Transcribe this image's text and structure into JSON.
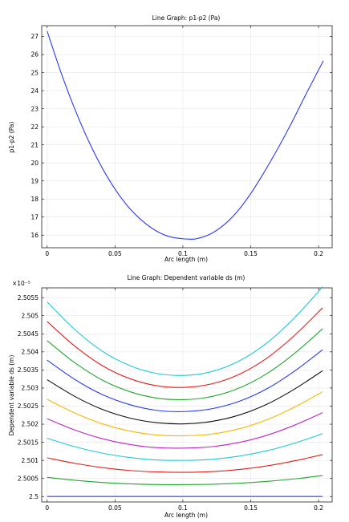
{
  "chart_data": [
    {
      "type": "line",
      "title": "Line Graph: p1-p2 (Pa)",
      "xlabel": "Arc length (m)",
      "ylabel": "p1-p2 (Pa)",
      "xlim": [
        -0.004,
        0.21
      ],
      "ylim": [
        15.3,
        27.6
      ],
      "x_ticks": [
        "0",
        "0.05",
        "0.1",
        "0.15",
        "0.2"
      ],
      "x_tick_values": [
        0,
        0.05,
        0.1,
        0.15,
        0.2
      ],
      "y_ticks": [
        "16",
        "17",
        "18",
        "19",
        "20",
        "21",
        "22",
        "23",
        "24",
        "25",
        "26",
        "27"
      ],
      "y_tick_values": [
        16,
        17,
        18,
        19,
        20,
        21,
        22,
        23,
        24,
        25,
        26,
        27
      ],
      "grid": true,
      "series": [
        {
          "color": "#2b3cf0",
          "x": [
            0,
            0.01,
            0.02,
            0.03,
            0.04,
            0.05,
            0.06,
            0.07,
            0.08,
            0.09,
            0.1,
            0.105,
            0.11,
            0.12,
            0.13,
            0.14,
            0.15,
            0.16,
            0.17,
            0.18,
            0.19,
            0.2,
            0.2035
          ],
          "y": [
            27.3,
            25.05,
            23.05,
            21.3,
            19.8,
            18.55,
            17.55,
            16.8,
            16.25,
            15.92,
            15.8,
            15.78,
            15.8,
            16.05,
            16.55,
            17.3,
            18.3,
            19.5,
            20.8,
            22.2,
            23.7,
            25.15,
            25.65
          ]
        }
      ]
    },
    {
      "type": "line",
      "title": "Line Graph: Dependent variable ds (m)",
      "xlabel": "Arc length (m)",
      "ylabel": "Dependent variable ds (m)",
      "exponent_label": "×10⁻⁵",
      "xlim": [
        -0.004,
        0.21
      ],
      "ylim": [
        2.49985,
        2.50577
      ],
      "x_ticks": [
        "0",
        "0.05",
        "0.1",
        "0.15",
        "0.2"
      ],
      "x_tick_values": [
        0,
        0.05,
        0.1,
        0.15,
        0.2
      ],
      "y_ticks": [
        "2.5",
        "2.5005",
        "2.501",
        "2.5015",
        "2.502",
        "2.5025",
        "2.503",
        "2.5035",
        "2.504",
        "2.5045",
        "2.505",
        "2.5055"
      ],
      "y_tick_values": [
        2.5,
        2.5005,
        2.501,
        2.5015,
        2.502,
        2.5025,
        2.503,
        2.5035,
        2.504,
        2.5045,
        2.505,
        2.5055
      ],
      "grid": true,
      "x": [
        0,
        0.0203,
        0.0406,
        0.0609,
        0.0812,
        0.1015,
        0.1218,
        0.1421,
        0.1624,
        0.1827,
        0.203
      ],
      "series": [
        {
          "color": "#2b3cf0",
          "y": [
            2.5,
            2.5,
            2.5,
            2.5,
            2.5,
            2.5,
            2.5,
            2.5,
            2.5,
            2.5,
            2.5
          ]
        },
        {
          "color": "#21a62d",
          "y": [
            2.50053,
            2.50045,
            2.50039,
            2.50035,
            2.50033,
            2.50033,
            2.50034,
            2.50037,
            2.50042,
            2.50049,
            2.50058
          ]
        },
        {
          "color": "#e0201b",
          "y": [
            2.50107,
            2.50092,
            2.5008,
            2.50072,
            2.50068,
            2.50067,
            2.50069,
            2.50075,
            2.50085,
            2.50099,
            2.50116
          ]
        },
        {
          "color": "#1fc8d4",
          "y": [
            2.50161,
            2.50138,
            2.5012,
            2.50108,
            2.50101,
            2.501,
            2.50103,
            2.50112,
            2.50127,
            2.50148,
            2.50174
          ]
        },
        {
          "color": "#c025c4",
          "y": [
            2.50215,
            2.50184,
            2.5016,
            2.50144,
            2.50135,
            2.50134,
            2.50138,
            2.5015,
            2.5017,
            2.50198,
            2.50232
          ]
        },
        {
          "color": "#f5b700",
          "y": [
            2.50269,
            2.50231,
            2.50201,
            2.50181,
            2.5017,
            2.50168,
            2.50173,
            2.50188,
            2.50213,
            2.50248,
            2.5029
          ]
        },
        {
          "color": "#111111",
          "y": [
            2.50323,
            2.50277,
            2.50241,
            2.50217,
            2.50204,
            2.50201,
            2.50208,
            2.50226,
            2.50256,
            2.50298,
            2.50348
          ]
        },
        {
          "color": "#2b3cf0",
          "y": [
            2.50377,
            2.50324,
            2.50282,
            2.50254,
            2.50238,
            2.50235,
            2.50243,
            2.50264,
            2.50299,
            2.50348,
            2.50406
          ]
        },
        {
          "color": "#21a62d",
          "y": [
            2.50431,
            2.5037,
            2.50322,
            2.5029,
            2.50272,
            2.50268,
            2.50277,
            2.50301,
            2.50341,
            2.50397,
            2.50464
          ]
        },
        {
          "color": "#e0201b",
          "y": [
            2.50484,
            2.50416,
            2.50362,
            2.50326,
            2.50306,
            2.50302,
            2.50312,
            2.50339,
            2.50384,
            2.50447,
            2.50522
          ]
        },
        {
          "color": "#1fc8d4",
          "y": [
            2.50538,
            2.50462,
            2.50402,
            2.50362,
            2.5034,
            2.50335,
            2.50346,
            2.50376,
            2.50426,
            2.50496,
            2.5058
          ]
        }
      ]
    }
  ]
}
